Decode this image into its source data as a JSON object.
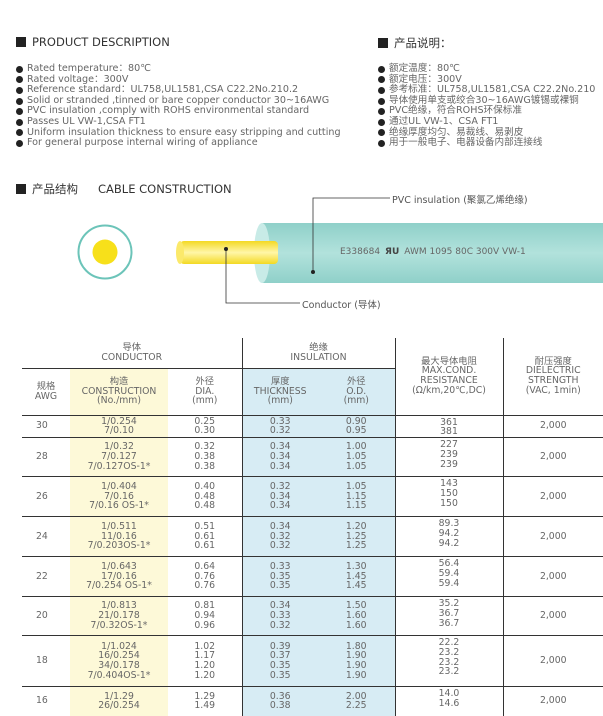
{
  "desc_en": {
    "title": "PRODUCT DESCRIPTION",
    "items": [
      "Rated temperature：80℃",
      "Rated voltage：300V",
      "Reference standard：UL758,UL1581,CSA C22.2No.210.2",
      "Solid or stranded ,tinned or bare copper conductor 30~16AWG",
      "PVC insulation ,comply with ROHS environmental standard",
      "Passes UL VW-1,CSA FT1",
      "Uniform insulation thickness to ensure easy stripping and cutting",
      "For general purpose internal wiring of appliance"
    ]
  },
  "desc_cn": {
    "title": "产品说明：",
    "items": [
      "额定温度：80℃",
      "额定电压：300V",
      "参考标准：UL758,UL1581,CSA C22.2No.210",
      "导体使用单支或绞合30~16AWG镀锡或裸铜",
      "PVC绝缘，符合ROHS环保标准",
      "通过UL VW-1、CSA FT1",
      "绝缘厚度均匀、易裁线、易剥皮",
      "用于一般电子、电器设备内部连接线"
    ]
  },
  "construction": {
    "title_cn": "产品结构",
    "title_en": "CABLE CONSTRUCTION",
    "insulation_label": "PVC insulation (聚氯乙烯绝缘)",
    "conductor_label": "Conductor (导体)",
    "print_code": "E338684",
    "print_logo": "UL-recognized-mark",
    "print_text": "AWM 1095 80C 300V VW-1",
    "colors": {
      "insulation": "#9fd8d2",
      "conductor": "#f5e23a"
    }
  },
  "table": {
    "headers": {
      "conductor_cn": "导体",
      "conductor_en": "CONDUCTOR",
      "insulation_cn": "绝缘",
      "insulation_en": "INSULATION",
      "awg_cn": "规格",
      "awg_en": "AWG",
      "cons_cn": "构造",
      "cons_en": "CONSTRUCTION",
      "cons_unit": "(No./mm)",
      "dia_cn": "外径",
      "dia_en": "DIA.",
      "dia_unit": "(mm)",
      "thk_cn": "厚度",
      "thk_en": "THICKNESS",
      "thk_unit": "(mm)",
      "od_cn": "外径",
      "od_en": "O.D.",
      "od_unit": "(mm)",
      "res_cn": "最大导体电阻",
      "res_en1": "MAX.COND.",
      "res_en2": "RESISTANCE",
      "res_unit": "(Ω/km,20℃,DC)",
      "ds_cn": "耐压强度",
      "ds_en1": "DIELECTRIC",
      "ds_en2": "STRENGTH",
      "ds_unit": "(VAC, 1min)"
    },
    "rows": [
      {
        "awg": "30",
        "construction": [
          "1/0.254",
          "7/0.10"
        ],
        "dia": [
          "0.25",
          "0.30"
        ],
        "thickness": [
          "0.33",
          "0.32"
        ],
        "od": [
          "0.90",
          "0.95"
        ],
        "resistance": [
          "361",
          "381"
        ],
        "dielectric": "2,000"
      },
      {
        "awg": "28",
        "construction": [
          "1/0.32",
          "7/0.127",
          "7/0.127OS-1*"
        ],
        "dia": [
          "0.32",
          "0.38",
          "0.38"
        ],
        "thickness": [
          "0.34",
          "0.34",
          "0.34"
        ],
        "od": [
          "1.00",
          "1.05",
          "1.05"
        ],
        "resistance": [
          "227",
          "239",
          "239"
        ],
        "dielectric": "2,000"
      },
      {
        "awg": "26",
        "construction": [
          "1/0.404",
          "7/0.16",
          "7/0.16 OS-1*"
        ],
        "dia": [
          "0.40",
          "0.48",
          "0.48"
        ],
        "thickness": [
          "0.32",
          "0.34",
          "0.34"
        ],
        "od": [
          "1.05",
          "1.15",
          "1.15"
        ],
        "resistance": [
          "143",
          "150",
          "150"
        ],
        "dielectric": "2,000"
      },
      {
        "awg": "24",
        "construction": [
          "1/0.511",
          "11/0.16",
          "7/0.203OS-1*"
        ],
        "dia": [
          "0.51",
          "0.61",
          "0.61"
        ],
        "thickness": [
          "0.34",
          "0.32",
          "0.32"
        ],
        "od": [
          "1.20",
          "1.25",
          "1.25"
        ],
        "resistance": [
          "89.3",
          "94.2",
          "94.2"
        ],
        "dielectric": "2,000"
      },
      {
        "awg": "22",
        "construction": [
          "1/0.643",
          "17/0.16",
          "7/0.254 OS-1*"
        ],
        "dia": [
          "0.64",
          "0.76",
          "0.76"
        ],
        "thickness": [
          "0.33",
          "0.35",
          "0.35"
        ],
        "od": [
          "1.30",
          "1.45",
          "1.45"
        ],
        "resistance": [
          "56.4",
          "59.4",
          "59.4"
        ],
        "dielectric": "2,000"
      },
      {
        "awg": "20",
        "construction": [
          "1/0.813",
          "21/0.178",
          "7/0.32OS-1*"
        ],
        "dia": [
          "0.81",
          "0.94",
          "0.96"
        ],
        "thickness": [
          "0.34",
          "0.33",
          "0.32"
        ],
        "od": [
          "1.50",
          "1.60",
          "1.60"
        ],
        "resistance": [
          "35.2",
          "36.7",
          "36.7"
        ],
        "dielectric": "2,000"
      },
      {
        "awg": "18",
        "construction": [
          "1/1.024",
          "16/0.254",
          "34/0.178",
          "7/0.404OS-1*"
        ],
        "dia": [
          "1.02",
          "1.17",
          "1.20",
          "1.20"
        ],
        "thickness": [
          "0.39",
          "0.37",
          "0.35",
          "0.35"
        ],
        "od": [
          "1.80",
          "1.90",
          "1.90",
          "1.90"
        ],
        "resistance": [
          "22.2",
          "23.2",
          "23.2",
          "23.2"
        ],
        "dielectric": "2,000"
      },
      {
        "awg": "16",
        "construction": [
          "1/1.29",
          "26/0.254"
        ],
        "dia": [
          "1.29",
          "1.49"
        ],
        "thickness": [
          "0.36",
          "0.38"
        ],
        "od": [
          "2.00",
          "2.25"
        ],
        "resistance": [
          "14.0",
          "14.6"
        ],
        "dielectric": "2,000"
      }
    ]
  }
}
